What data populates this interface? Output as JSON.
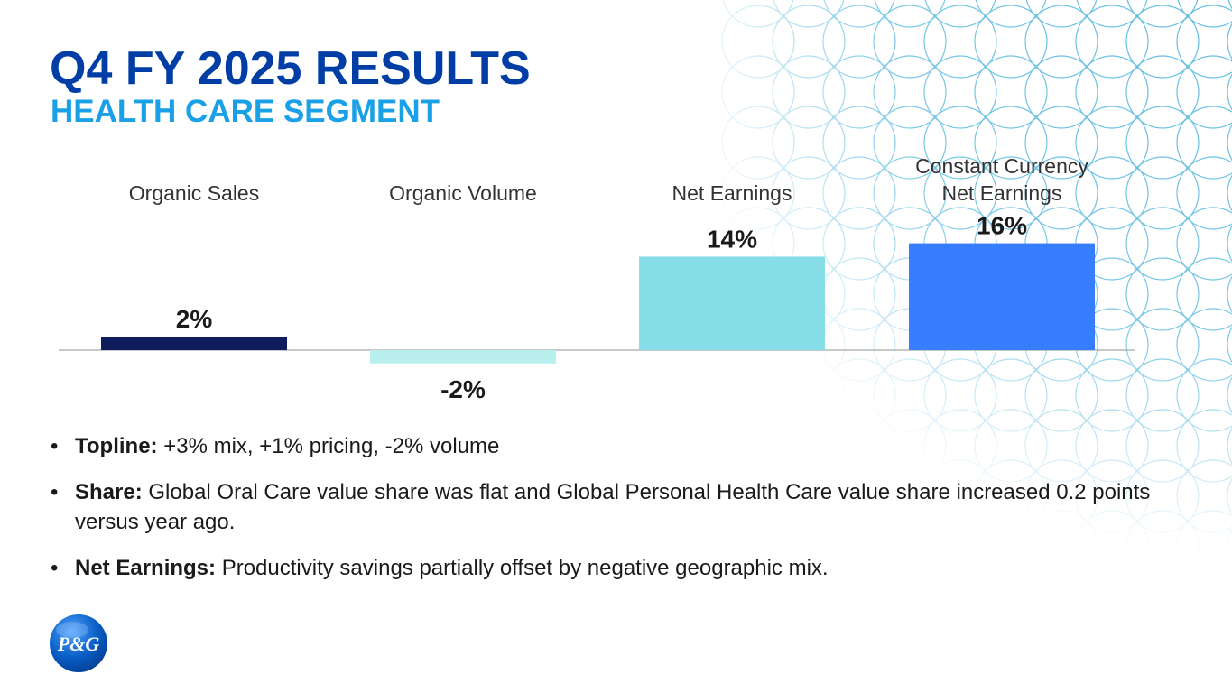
{
  "slide": {
    "title": "Q4 FY 2025 RESULTS",
    "subtitle": "HEALTH CARE SEGMENT"
  },
  "chart_data": {
    "type": "bar",
    "categories": [
      "Organic Sales",
      "Organic Volume",
      "Net Earnings",
      "Constant Currency Net Earnings"
    ],
    "category_lines": [
      [
        "Organic Sales"
      ],
      [
        "Organic Volume"
      ],
      [
        "Net Earnings"
      ],
      [
        "Constant Currency",
        "Net Earnings"
      ]
    ],
    "values": [
      2,
      -2,
      14,
      16
    ],
    "value_labels": [
      "2%",
      "-2%",
      "14%",
      "16%"
    ],
    "colors": [
      "#0f1c5e",
      "#b9f0ee",
      "#86dfe8",
      "#377dff"
    ],
    "ylim": [
      -3,
      18
    ],
    "grid": false,
    "legend": "none"
  },
  "bullets": [
    {
      "label": "Topline:",
      "text": " +3% mix, +1% pricing, -2% volume"
    },
    {
      "label": "Share:",
      "text": " Global Oral Care value share was flat and Global Personal Health Care value share increased 0.2 points versus year ago."
    },
    {
      "label": "Net Earnings:",
      "text": " Productivity savings partially offset by negative geographic mix."
    }
  ],
  "logo": {
    "text": "P&G",
    "color": "#0a5fc7",
    "icon": "pg-logo-icon"
  },
  "background": {
    "pattern": "circle-lattice",
    "color": "#4fb6df"
  }
}
